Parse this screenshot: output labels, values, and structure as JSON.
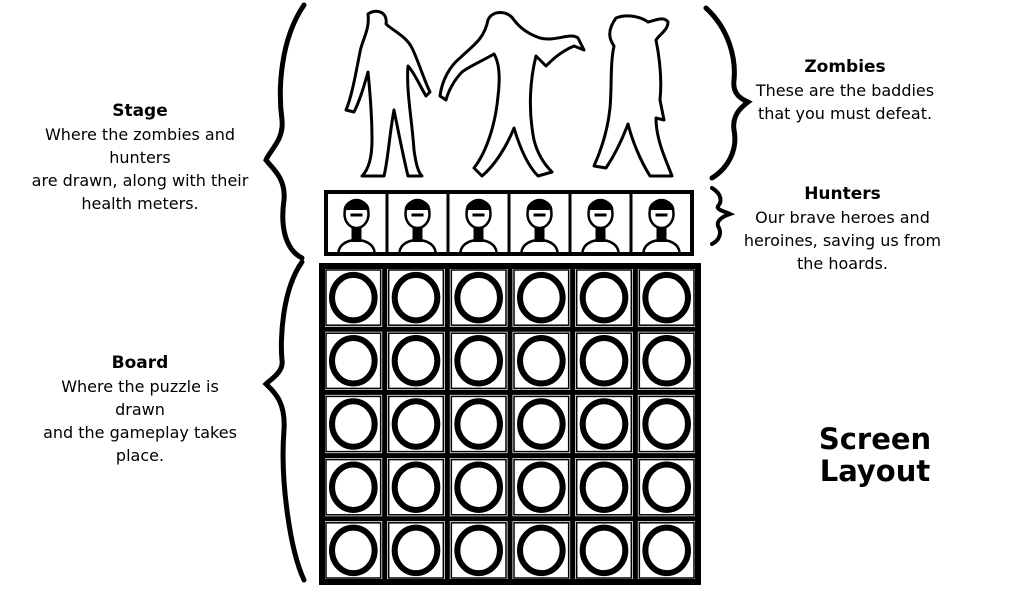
{
  "screen_title": "Screen\nLayout",
  "annotations": {
    "stage": {
      "title": "Stage",
      "body": "Where the zombies and hunters\nare drawn, along with their\nhealth meters."
    },
    "zombies": {
      "title": "Zombies",
      "body": "These are the baddies\nthat you must defeat."
    },
    "hunters": {
      "title": "Hunters",
      "body": "Our brave heroes and\nheroines, saving us from\nthe hoards."
    },
    "board": {
      "title": "Board",
      "body": "Where the puzzle is drawn\nand the gameplay takes\nplace."
    }
  },
  "stage": {
    "zombie_count": 3,
    "hunter_count": 6
  },
  "board": {
    "rows": 5,
    "cols": 6,
    "piece": "ring-icon"
  },
  "colors": {
    "ink": "#000000",
    "paper": "#ffffff"
  }
}
